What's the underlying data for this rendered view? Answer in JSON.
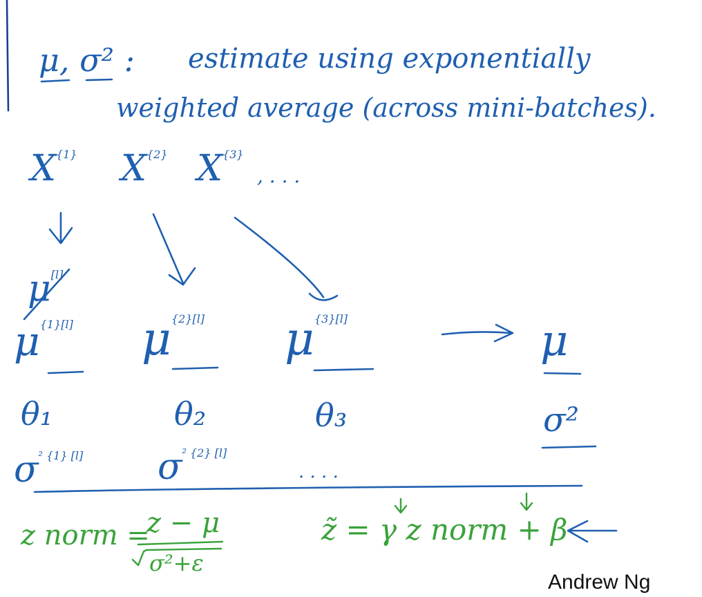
{
  "line1": {
    "symbols": "μ, σ² :",
    "text": "estimate using exponentially"
  },
  "line2": {
    "text": "weighted average (across mini-batches)."
  },
  "minibatches": {
    "x1": "X",
    "x1_sup": "{1}",
    "x2": "X",
    "x2_sup": "{2}",
    "x3": "X",
    "x3_sup": "{3}",
    "ellipsis": ", . . ."
  },
  "mu_row": {
    "crossed": "μ",
    "crossed_sup": "[l]",
    "m1": "μ",
    "m1_sup": "{1}[l]",
    "m2": "μ",
    "m2_sup": "{2}[l]",
    "m3": "μ",
    "m3_sup": "{3}[l]",
    "final": "μ"
  },
  "theta_row": {
    "t1": "θ₁",
    "t2": "θ₂",
    "t3": "θ₃",
    "final": "σ²"
  },
  "sigma_row": {
    "s1": "σ",
    "s1_sup": "² {1} [l]",
    "s2": "σ",
    "s2_sup": "² {2} [l]",
    "dots": ". . . ."
  },
  "formulas": {
    "znorm_lhs": "z norm =",
    "znorm_num": "z − μ",
    "znorm_den": "σ²+ε",
    "ztilde": "z̃ = γ z norm + β"
  },
  "credit": "Andrew Ng"
}
